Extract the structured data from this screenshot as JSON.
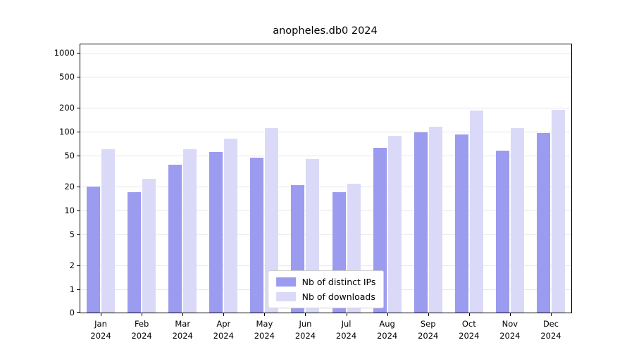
{
  "title": "anopheles.db0 2024",
  "chart_data": {
    "type": "bar",
    "title": "anopheles.db0 2024",
    "categories": [
      "Jan",
      "Feb",
      "Mar",
      "Apr",
      "May",
      "Jun",
      "Jul",
      "Aug",
      "Sep",
      "Oct",
      "Nov",
      "Dec"
    ],
    "year": "2024",
    "series": [
      {
        "name": "Nb of distinct IPs",
        "color": "#9b9bef",
        "values": [
          20,
          17,
          38,
          55,
          47,
          21,
          17,
          62,
          97,
          92,
          57,
          96
        ]
      },
      {
        "name": "Nb of downloads",
        "color": "#dadaf8",
        "values": [
          60,
          25,
          60,
          82,
          110,
          45,
          22,
          88,
          115,
          185,
          110,
          190
        ]
      }
    ],
    "yticks": [
      0,
      1,
      2,
      5,
      10,
      20,
      50,
      100,
      200,
      500,
      1000
    ],
    "ytick_labels": [
      "0",
      "1",
      "2",
      "5",
      "10",
      "20",
      "50",
      "100",
      "200",
      "500",
      "1000"
    ],
    "yscale": "log",
    "ylim": [
      0,
      1200
    ],
    "grid": "horizontal",
    "legend_position": "bottom-center-inside"
  }
}
